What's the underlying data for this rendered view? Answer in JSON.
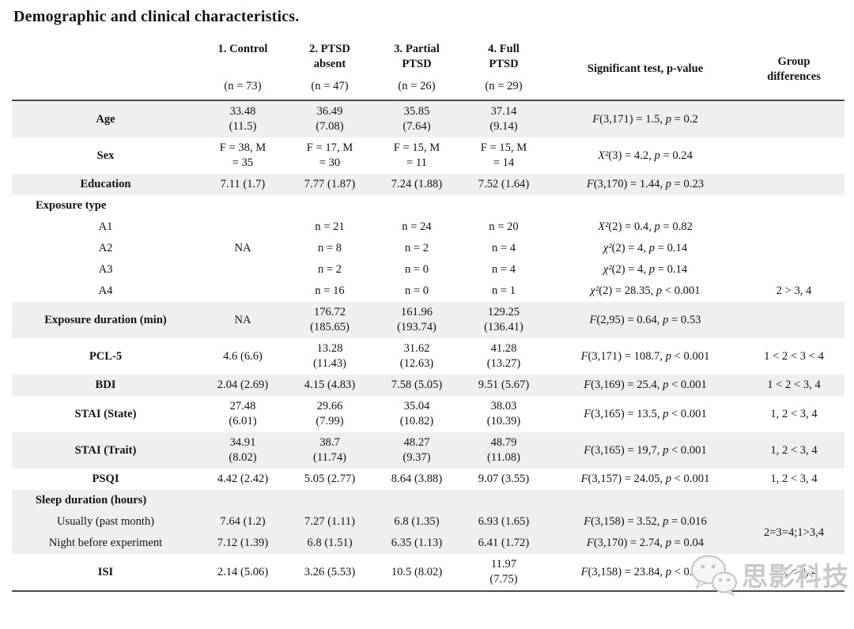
{
  "title": "Demographic and clinical characteristics.",
  "colors": {
    "row_shade": "#efefef",
    "rule": "#4a4a4a",
    "watermark_gray": "#c9c9c9"
  },
  "watermark": {
    "text": "思影科技",
    "icon": "wechat-logo-icon"
  },
  "table": {
    "group_headers": [
      {
        "name": "1. Control",
        "n": "(n = 73)"
      },
      {
        "name": "2. PTSD\nabsent",
        "n": "(n = 47)"
      },
      {
        "name": "3. Partial\nPTSD",
        "n": "(n = 26)"
      },
      {
        "name": "4. Full\nPTSD",
        "n": "(n = 29)"
      }
    ],
    "sig_header": "Significant test, p-value",
    "diff_header": "Group\ndifferences",
    "rows": [
      {
        "label": "Age",
        "type": "main",
        "shaded": true,
        "cells": [
          "33.48\n(11.5)",
          "36.49\n(7.08)",
          "35.85\n(7.64)",
          "37.14\n(9.14)"
        ],
        "sig": "F(3,171) = 1.5, p = 0.2",
        "diff": ""
      },
      {
        "label": "Sex",
        "type": "main",
        "shaded": false,
        "cells": [
          "F = 38, M\n= 35",
          "F = 17, M\n= 30",
          "F = 15, M\n= 11",
          "F = 15, M\n= 14"
        ],
        "sig": "X²(3) = 4.2, p = 0.24",
        "diff": ""
      },
      {
        "label": "Education",
        "type": "main",
        "shaded": true,
        "cells": [
          "7.11 (1.7)",
          "7.77 (1.87)",
          "7.24 (1.88)",
          "7.52 (1.64)"
        ],
        "sig": "F(3,170) = 1.44, p = 0.23",
        "diff": ""
      },
      {
        "label": "Exposure type",
        "type": "section",
        "shaded": false,
        "section": true
      },
      {
        "label": "A1",
        "type": "sub",
        "shaded": false,
        "cells": [
          {
            "text": "NA",
            "rowspan": 4,
            "nudge": true
          },
          "n = 21",
          "n = 24",
          "n = 20"
        ],
        "sig": "X²(2) = 0.4, p = 0.82",
        "diff": ""
      },
      {
        "label": "A2",
        "type": "sub",
        "shaded": false,
        "skip_control": true,
        "cells": [
          "n = 8",
          "n = 2",
          "n = 4"
        ],
        "sig": "χ²(2) = 4, p = 0.14",
        "diff": ""
      },
      {
        "label": "A3",
        "type": "sub",
        "shaded": false,
        "skip_control": true,
        "cells": [
          "n = 2",
          "n = 0",
          "n = 4"
        ],
        "sig": "χ²(2) = 4, p = 0.14",
        "diff": ""
      },
      {
        "label": "A4",
        "type": "sub",
        "shaded": false,
        "skip_control": true,
        "cells": [
          "n = 16",
          "n = 0",
          "n = 1"
        ],
        "sig": "χ²(2) = 28.35, p < 0.001",
        "diff": "2 > 3, 4"
      },
      {
        "label": "Exposure duration (min)",
        "type": "main",
        "shaded": true,
        "cells": [
          "NA",
          "176.72\n(185.65)",
          "161.96\n(193.74)",
          "129.25\n(136.41)"
        ],
        "sig": "F(2,95) = 0.64, p = 0.53",
        "diff": ""
      },
      {
        "label": "PCL-5",
        "type": "main",
        "shaded": false,
        "cells": [
          "4.6 (6.6)",
          "13.28\n(11.43)",
          "31.62\n(12.63)",
          "41.28\n(13.27)"
        ],
        "sig": "F(3,171) = 108.7, p < 0.001",
        "diff": "1 < 2 < 3 < 4"
      },
      {
        "label": "BDI",
        "type": "main",
        "shaded": true,
        "cells": [
          "2.04 (2.69)",
          "4.15 (4.83)",
          "7.58 (5.05)",
          "9.51 (5.67)"
        ],
        "sig": "F(3,169) = 25.4, p < 0.001",
        "diff": "1 < 2 < 3, 4"
      },
      {
        "label": "STAI (State)",
        "type": "main",
        "shaded": false,
        "cells": [
          "27.48\n(6.01)",
          "29.66\n(7.99)",
          "35.04\n(10.82)",
          "38.03\n(10.39)"
        ],
        "sig": "F(3,165) = 13.5, p < 0.001",
        "diff": "1, 2 < 3, 4"
      },
      {
        "label": "STAI (Trait)",
        "type": "main",
        "shaded": true,
        "cells": [
          "34.91\n(8.02)",
          "38.7\n(11.74)",
          "48.27\n(9.37)",
          "48.79\n(11.08)"
        ],
        "sig": "F(3,165) = 19,7, p < 0.001",
        "diff": "1, 2 < 3, 4"
      },
      {
        "label": "PSQI",
        "type": "main",
        "shaded": false,
        "cells": [
          "4.42 (2.42)",
          "5.05 (2.77)",
          "8.64 (3.88)",
          "9.07 (3.55)"
        ],
        "sig": "F(3,157) = 24.05, p < 0.001",
        "diff": "1, 2 < 3, 4"
      },
      {
        "label": "Sleep duration (hours)",
        "type": "section",
        "shaded": true,
        "section": true
      },
      {
        "label": "Usually (past month)",
        "type": "sub",
        "shaded": true,
        "cells": [
          "7.64 (1.2)",
          "7.27 (1.11)",
          "6.8 (1.35)",
          "6.93 (1.65)"
        ],
        "sig": "F(3,158) = 3.52, p = 0.016",
        "diff": {
          "text": "2=3=4;1>3,4",
          "rowspan": 2
        }
      },
      {
        "label": "Night before experiment",
        "type": "sub",
        "shaded": true,
        "skip_diff": true,
        "cells": [
          "7.12 (1.39)",
          "6.8 (1.51)",
          "6.35 (1.13)",
          "6.41 (1.72)"
        ],
        "sig": "F(3,170) = 2.74, p = 0.04"
      },
      {
        "label": "ISI",
        "type": "main",
        "shaded": false,
        "cells": [
          "2.14 (5.06)",
          "3.26 (5.53)",
          "10.5 (8.02)",
          "11.97\n(7.75)"
        ],
        "sig": "F(3,158) = 23.84, p < 0.001",
        "diff": "1, 2 < 3, 4"
      }
    ]
  }
}
